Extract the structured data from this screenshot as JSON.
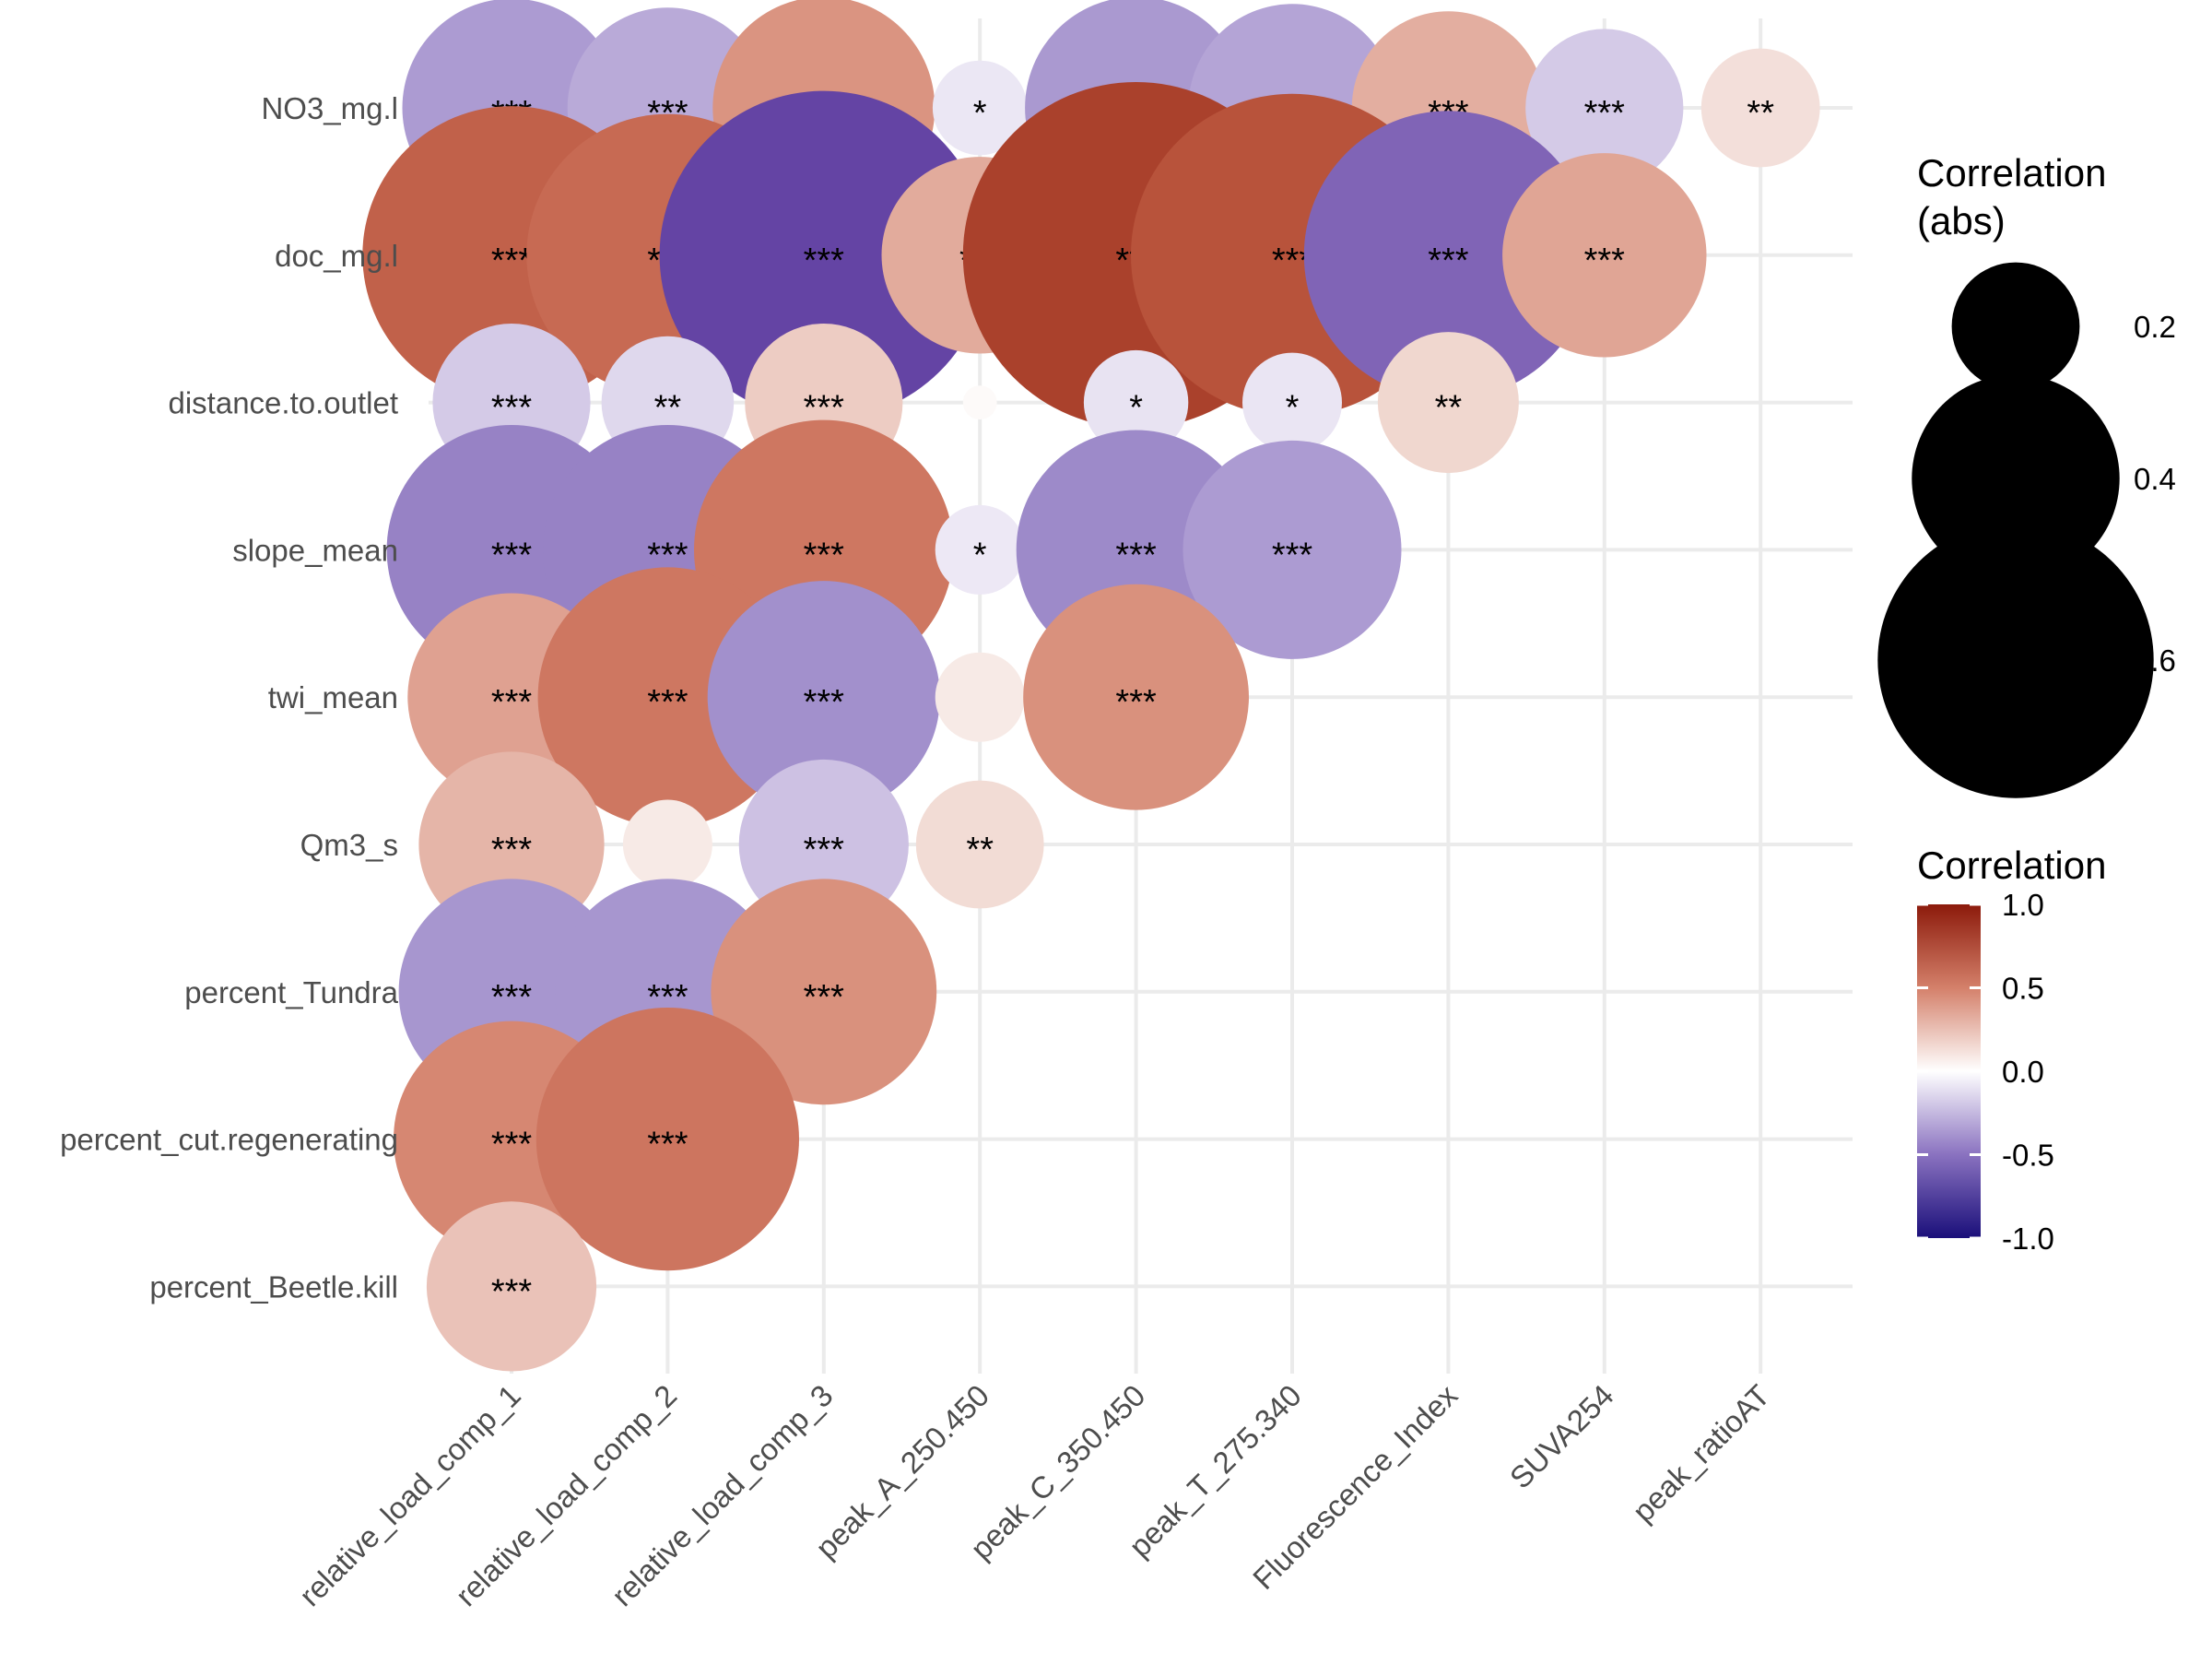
{
  "chart_data": {
    "type": "scatter",
    "subtype": "correlation-bubble-matrix",
    "title": "",
    "xlabel": "",
    "ylabel": "",
    "x_categories": [
      "relative_load_comp_1",
      "relative_load_comp_2",
      "relative_load_comp_3",
      "peak_A_250.450",
      "peak_C_350.450",
      "peak_T_275.340",
      "Fluorescence_Index",
      "SUVA254",
      "peak_ratioAT"
    ],
    "y_categories": [
      "NO3_mg.l",
      "doc_mg.l",
      "distance.to.outlet",
      "slope_mean",
      "twi_mean",
      "Qm3_s",
      "percent_Tundra",
      "percent_cut.regenerating",
      "percent_Beetle.kill"
    ],
    "cells": [
      {
        "y": "NO3_mg.l",
        "x": "relative_load_comp_1",
        "r": -0.43,
        "sig": "***"
      },
      {
        "y": "NO3_mg.l",
        "x": "relative_load_comp_2",
        "r": -0.38,
        "sig": "***"
      },
      {
        "y": "NO3_mg.l",
        "x": "relative_load_comp_3",
        "r": 0.44,
        "sig": "***"
      },
      {
        "y": "NO3_mg.l",
        "x": "peak_A_250.450",
        "r": -0.13,
        "sig": "*"
      },
      {
        "y": "NO3_mg.l",
        "x": "peak_C_350.450",
        "r": -0.44,
        "sig": "***"
      },
      {
        "y": "NO3_mg.l",
        "x": "peak_T_275.340",
        "r": -0.4,
        "sig": "***"
      },
      {
        "y": "NO3_mg.l",
        "x": "Fluorescence_Index",
        "r": 0.36,
        "sig": "***"
      },
      {
        "y": "NO3_mg.l",
        "x": "SUVA254",
        "r": -0.27,
        "sig": "***"
      },
      {
        "y": "NO3_mg.l",
        "x": "peak_ratioAT",
        "r": 0.18,
        "sig": "**"
      },
      {
        "y": "doc_mg.l",
        "x": "relative_load_comp_1",
        "r": 0.67,
        "sig": "***"
      },
      {
        "y": "doc_mg.l",
        "x": "relative_load_comp_2",
        "r": 0.62,
        "sig": "***"
      },
      {
        "y": "doc_mg.l",
        "x": "relative_load_comp_3",
        "r": -0.77,
        "sig": "***"
      },
      {
        "y": "doc_mg.l",
        "x": "peak_A_250.450",
        "r": 0.37,
        "sig": "***"
      },
      {
        "y": "doc_mg.l",
        "x": "peak_C_350.450",
        "r": 0.83,
        "sig": "***"
      },
      {
        "y": "doc_mg.l",
        "x": "peak_T_275.340",
        "r": 0.75,
        "sig": "***"
      },
      {
        "y": "doc_mg.l",
        "x": "Fluorescence_Index",
        "r": -0.64,
        "sig": "***"
      },
      {
        "y": "doc_mg.l",
        "x": "SUVA254",
        "r": 0.39,
        "sig": "***"
      },
      {
        "y": "distance.to.outlet",
        "x": "relative_load_comp_1",
        "r": -0.27,
        "sig": "***"
      },
      {
        "y": "distance.to.outlet",
        "x": "relative_load_comp_2",
        "r": -0.21,
        "sig": "**"
      },
      {
        "y": "distance.to.outlet",
        "x": "relative_load_comp_3",
        "r": 0.27,
        "sig": "***"
      },
      {
        "y": "distance.to.outlet",
        "x": "peak_A_250.450",
        "r": 0.03,
        "sig": ""
      },
      {
        "y": "distance.to.outlet",
        "x": "peak_C_350.450",
        "r": -0.15,
        "sig": "*"
      },
      {
        "y": "distance.to.outlet",
        "x": "peak_T_275.340",
        "r": -0.14,
        "sig": "*"
      },
      {
        "y": "distance.to.outlet",
        "x": "Fluorescence_Index",
        "r": 0.23,
        "sig": "**"
      },
      {
        "y": "slope_mean",
        "x": "relative_load_comp_1",
        "r": -0.52,
        "sig": "***"
      },
      {
        "y": "slope_mean",
        "x": "relative_load_comp_2",
        "r": -0.52,
        "sig": "***"
      },
      {
        "y": "slope_mean",
        "x": "relative_load_comp_3",
        "r": 0.55,
        "sig": "***"
      },
      {
        "y": "slope_mean",
        "x": "peak_A_250.450",
        "r": -0.12,
        "sig": "*"
      },
      {
        "y": "slope_mean",
        "x": "peak_C_350.450",
        "r": -0.49,
        "sig": "***"
      },
      {
        "y": "slope_mean",
        "x": "peak_T_275.340",
        "r": -0.43,
        "sig": "***"
      },
      {
        "y": "twi_mean",
        "x": "relative_load_comp_1",
        "r": 0.4,
        "sig": "***"
      },
      {
        "y": "twi_mean",
        "x": "relative_load_comp_2",
        "r": 0.55,
        "sig": "***"
      },
      {
        "y": "twi_mean",
        "x": "relative_load_comp_3",
        "r": -0.47,
        "sig": "***"
      },
      {
        "y": "twi_mean",
        "x": "peak_A_250.450",
        "r": 0.12,
        "sig": ""
      },
      {
        "y": "twi_mean",
        "x": "peak_C_350.450",
        "r": 0.45,
        "sig": "***"
      },
      {
        "y": "Qm3_s",
        "x": "relative_load_comp_1",
        "r": 0.34,
        "sig": "***"
      },
      {
        "y": "Qm3_s",
        "x": "relative_load_comp_2",
        "r": 0.12,
        "sig": ""
      },
      {
        "y": "Qm3_s",
        "x": "relative_load_comp_3",
        "r": -0.3,
        "sig": "***"
      },
      {
        "y": "Qm3_s",
        "x": "peak_A_250.450",
        "r": 0.2,
        "sig": "**"
      },
      {
        "y": "percent_Tundra",
        "x": "relative_load_comp_1",
        "r": -0.45,
        "sig": "***"
      },
      {
        "y": "percent_Tundra",
        "x": "relative_load_comp_2",
        "r": -0.45,
        "sig": "***"
      },
      {
        "y": "percent_Tundra",
        "x": "relative_load_comp_3",
        "r": 0.45,
        "sig": "***"
      },
      {
        "y": "percent_cut.regenerating",
        "x": "relative_load_comp_1",
        "r": 0.48,
        "sig": "***"
      },
      {
        "y": "percent_cut.regenerating",
        "x": "relative_load_comp_2",
        "r": 0.56,
        "sig": "***"
      },
      {
        "y": "percent_Beetle.kill",
        "x": "relative_load_comp_1",
        "r": 0.3,
        "sig": "***"
      }
    ],
    "color_scale": {
      "title": "Correlation",
      "min": -1.0,
      "max": 1.0,
      "ticks": [
        "1.0",
        "0.5",
        "0.0",
        "-0.5",
        "-1.0"
      ],
      "low_color": "#1a0f7a",
      "mid_color": "#ffffff",
      "high_color": "#8c1a0b"
    },
    "size_legend": {
      "title_lines": [
        "Correlation",
        "(abs)"
      ],
      "values": [
        0.2,
        0.4,
        0.6
      ],
      "labels": [
        "0.2",
        "0.4",
        "0.6"
      ]
    },
    "grid": true
  }
}
